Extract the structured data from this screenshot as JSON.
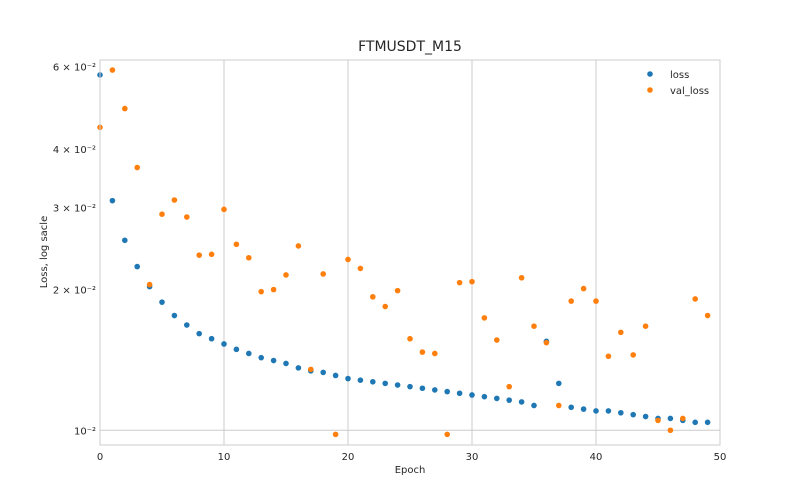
{
  "chart_data": {
    "type": "scatter",
    "title": "FTMUSDT_M15",
    "xlabel": "Epoch",
    "ylabel": "Loss, log sacle",
    "xlim": [
      0,
      50
    ],
    "ylim": [
      0.0093,
      0.062
    ],
    "yscale": "log",
    "grid": "x-only",
    "legend": "top-right",
    "x_ticks": [
      0,
      10,
      20,
      30,
      40,
      50
    ],
    "y_ticks": [
      {
        "value": 0.01,
        "label": "10⁻²"
      },
      {
        "value": 0.02,
        "label": "2 × 10⁻²"
      },
      {
        "value": 0.03,
        "label": "3 × 10⁻²"
      },
      {
        "value": 0.04,
        "label": "4 × 10⁻²"
      },
      {
        "value": 0.06,
        "label": "6 × 10⁻²"
      }
    ],
    "x": [
      0,
      1,
      2,
      3,
      4,
      5,
      6,
      7,
      8,
      9,
      10,
      11,
      12,
      13,
      14,
      15,
      16,
      17,
      18,
      19,
      20,
      21,
      22,
      23,
      24,
      25,
      26,
      27,
      28,
      29,
      30,
      31,
      32,
      33,
      34,
      35,
      36,
      37,
      38,
      39,
      40,
      41,
      42,
      43,
      44,
      45,
      46,
      47,
      48,
      49
    ],
    "series": [
      {
        "name": "loss",
        "color": "#1f77b4",
        "values": [
          0.0576,
          0.031,
          0.0255,
          0.0224,
          0.0203,
          0.0188,
          0.0176,
          0.0168,
          0.0161,
          0.0157,
          0.0153,
          0.0149,
          0.0146,
          0.0143,
          0.0141,
          0.0139,
          0.0136,
          0.0134,
          0.0133,
          0.0131,
          0.0129,
          0.0128,
          0.0127,
          0.0126,
          0.0125,
          0.0124,
          0.0123,
          0.0122,
          0.0121,
          0.012,
          0.0119,
          0.0118,
          0.0117,
          0.0116,
          0.0115,
          0.0113,
          0.0155,
          0.0126,
          0.0112,
          0.0111,
          0.011,
          0.011,
          0.0109,
          0.0108,
          0.0107,
          0.0106,
          0.0106,
          0.0105,
          0.0104,
          0.0104
        ]
      },
      {
        "name": "val_loss",
        "color": "#ff7f0e",
        "values": [
          0.0445,
          0.059,
          0.0488,
          0.0365,
          0.0205,
          0.029,
          0.0311,
          0.0286,
          0.0237,
          0.0238,
          0.0297,
          0.025,
          0.0234,
          0.0198,
          0.02,
          0.0215,
          0.0248,
          0.0135,
          0.0216,
          0.0098,
          0.0232,
          0.0222,
          0.0193,
          0.0184,
          0.0199,
          0.0157,
          0.0147,
          0.0146,
          0.0098,
          0.0207,
          0.0208,
          0.0174,
          0.0156,
          0.0124,
          0.0212,
          0.0167,
          0.0154,
          0.0113,
          0.0189,
          0.0201,
          0.0189,
          0.0144,
          0.0162,
          0.0145,
          0.0167,
          0.0105,
          0.01,
          0.0106,
          0.0191,
          0.0176
        ]
      }
    ]
  }
}
